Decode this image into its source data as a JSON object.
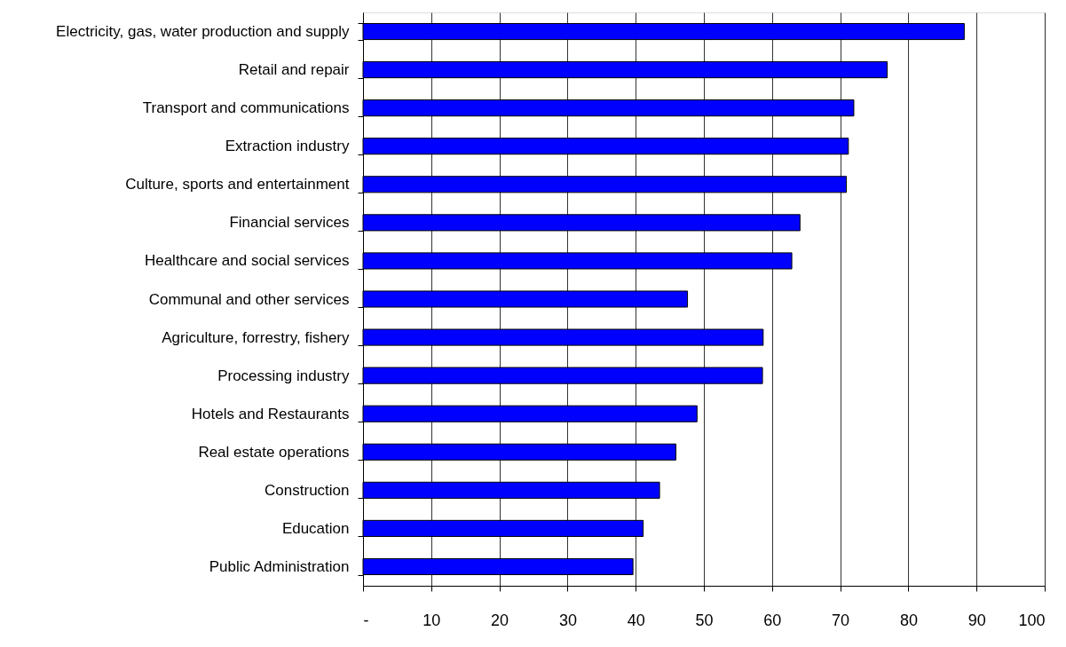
{
  "chart_data": {
    "type": "bar",
    "orientation": "horizontal",
    "categories": [
      "Electricity, gas, water production and supply",
      "Retail and repair",
      "Transport and communications",
      "Extraction industry",
      "Culture, sports and entertainment",
      "Financial services",
      "Healthcare and social services",
      "Communal and other services",
      "Agriculture, forrestry, fishery",
      "Processing industry",
      "Hotels and Restaurants",
      "Real estate operations",
      "Construction",
      "Education",
      "Public Administration"
    ],
    "values": [
      88.2,
      76.9,
      72.0,
      71.2,
      70.9,
      64.1,
      62.9,
      47.6,
      58.7,
      58.6,
      49.0,
      45.9,
      43.5,
      41.1,
      39.6
    ],
    "color": "#0000ff",
    "xlim": [
      0,
      100
    ],
    "xticks": [
      {
        "value": 0,
        "label": "-"
      },
      10,
      20,
      30,
      40,
      50,
      60,
      70,
      80,
      90,
      100
    ],
    "grid": "x"
  }
}
